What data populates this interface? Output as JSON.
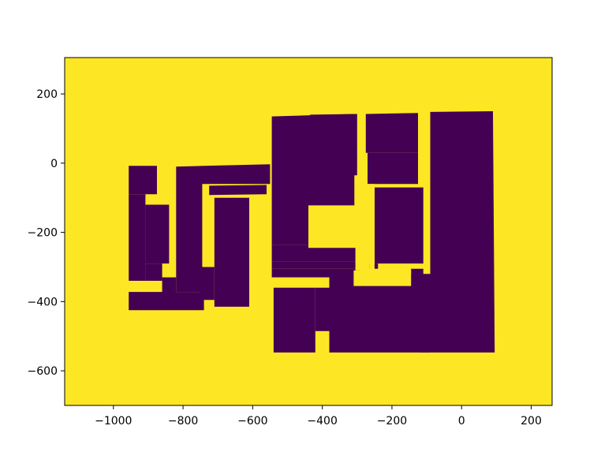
{
  "chart_data": {
    "type": "heatmap",
    "title": "",
    "xlabel": "",
    "ylabel": "",
    "xlim": [
      -1140,
      260
    ],
    "ylim": [
      -700,
      305
    ],
    "x_ticks": [
      -1000,
      -800,
      -600,
      -400,
      -200,
      0,
      200
    ],
    "y_ticks": [
      200,
      0,
      -200,
      -400,
      -600
    ],
    "x_tick_labels": [
      "−1000",
      "−800",
      "−600",
      "−400",
      "−200",
      "0",
      "200"
    ],
    "y_tick_labels": [
      "200",
      "0",
      "−200",
      "−400",
      "−600"
    ],
    "colors": {
      "free": "#fde725",
      "occupied": "#440154"
    },
    "grid": false,
    "legend": false,
    "occupied_regions": [
      [
        [
          -956,
          -8
        ],
        [
          -875,
          -8
        ],
        [
          -875,
          -90
        ],
        [
          -956,
          -90
        ]
      ],
      [
        [
          -956,
          -90
        ],
        [
          -908,
          -90
        ],
        [
          -908,
          -340
        ],
        [
          -956,
          -340
        ]
      ],
      [
        [
          -908,
          -120
        ],
        [
          -840,
          -120
        ],
        [
          -840,
          -290
        ],
        [
          -908,
          -290
        ]
      ],
      [
        [
          -908,
          -290
        ],
        [
          -860,
          -290
        ],
        [
          -860,
          -340
        ],
        [
          -908,
          -340
        ]
      ],
      [
        [
          -860,
          -330
        ],
        [
          -820,
          -330
        ],
        [
          -820,
          -375
        ],
        [
          -860,
          -375
        ]
      ],
      [
        [
          -956,
          -372
        ],
        [
          -740,
          -372
        ],
        [
          -740,
          -425
        ],
        [
          -956,
          -425
        ]
      ],
      [
        [
          -820,
          -10
        ],
        [
          -550,
          -3
        ],
        [
          -550,
          -60
        ],
        [
          -745,
          -60
        ],
        [
          -745,
          -372
        ],
        [
          -820,
          -372
        ]
      ],
      [
        [
          -725,
          -65
        ],
        [
          -560,
          -63
        ],
        [
          -560,
          -90
        ],
        [
          -725,
          -92
        ]
      ],
      [
        [
          -710,
          -100
        ],
        [
          -610,
          -100
        ],
        [
          -610,
          -415
        ],
        [
          -710,
          -415
        ]
      ],
      [
        [
          -750,
          -300
        ],
        [
          -710,
          -300
        ],
        [
          -710,
          -395
        ],
        [
          -750,
          -395
        ]
      ],
      [
        [
          -545,
          135
        ],
        [
          -308,
          142
        ],
        [
          -308,
          -236
        ],
        [
          -545,
          -236
        ]
      ],
      [
        [
          -545,
          -236
        ],
        [
          -290,
          -236
        ],
        [
          -290,
          -285
        ],
        [
          -545,
          -285
        ]
      ],
      [
        [
          -545,
          -285
        ],
        [
          -290,
          -285
        ],
        [
          -290,
          -305
        ],
        [
          -545,
          -305
        ]
      ],
      [
        [
          -435,
          140
        ],
        [
          -300,
          142
        ],
        [
          -300,
          -35
        ],
        [
          -435,
          -35
        ]
      ],
      [
        [
          -275,
          142
        ],
        [
          -125,
          145
        ],
        [
          -125,
          30
        ],
        [
          -275,
          30
        ]
      ],
      [
        [
          -270,
          30
        ],
        [
          -125,
          30
        ],
        [
          -125,
          -60
        ],
        [
          -270,
          -60
        ]
      ],
      [
        [
          -250,
          -70
        ],
        [
          -110,
          -70
        ],
        [
          -110,
          -290
        ],
        [
          -250,
          -290
        ]
      ],
      [
        [
          -290,
          -305
        ],
        [
          -240,
          -305
        ],
        [
          -240,
          -290
        ],
        [
          -290,
          -290
        ]
      ],
      [
        [
          -90,
          148
        ],
        [
          90,
          150
        ],
        [
          95,
          -547
        ],
        [
          -90,
          -547
        ]
      ],
      [
        [
          -120,
          -355
        ],
        [
          -90,
          -355
        ],
        [
          -90,
          -547
        ],
        [
          -120,
          -547
        ]
      ],
      [
        [
          -540,
          -360
        ],
        [
          -420,
          -360
        ],
        [
          -420,
          -547
        ],
        [
          -540,
          -547
        ]
      ],
      [
        [
          -420,
          -360
        ],
        [
          -380,
          -360
        ],
        [
          -380,
          -485
        ],
        [
          -420,
          -485
        ]
      ],
      [
        [
          -380,
          -320
        ],
        [
          -90,
          -320
        ],
        [
          -90,
          -547
        ],
        [
          -380,
          -547
        ]
      ],
      [
        [
          -545,
          -305
        ],
        [
          -290,
          -305
        ],
        [
          -290,
          -330
        ],
        [
          -545,
          -330
        ]
      ],
      [
        [
          -145,
          -305
        ],
        [
          -110,
          -305
        ],
        [
          -110,
          -355
        ],
        [
          -145,
          -355
        ]
      ]
    ],
    "free_regions": [
      [
        [
          -440,
          -122
        ],
        [
          -290,
          -122
        ],
        [
          -290,
          -245
        ],
        [
          -440,
          -245
        ]
      ],
      [
        [
          -305,
          -60
        ],
        [
          -265,
          -60
        ],
        [
          -265,
          -310
        ],
        [
          -305,
          -310
        ]
      ],
      [
        [
          -310,
          -310
        ],
        [
          -145,
          -310
        ],
        [
          -145,
          -355
        ],
        [
          -310,
          -355
        ]
      ],
      [
        [
          -265,
          -60
        ],
        [
          -250,
          -60
        ],
        [
          -250,
          -320
        ],
        [
          -265,
          -320
        ]
      ]
    ]
  }
}
